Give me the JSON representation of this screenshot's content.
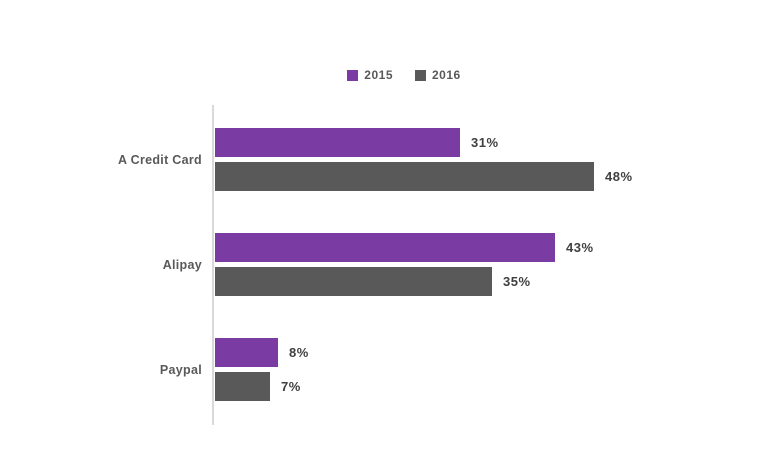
{
  "chart_data": {
    "type": "bar",
    "orientation": "horizontal",
    "categories": [
      "A Credit Card",
      "Alipay",
      "Paypal"
    ],
    "series": [
      {
        "name": "2015",
        "color": "#7A3BA3",
        "values": [
          31,
          43,
          8
        ]
      },
      {
        "name": "2016",
        "color": "#595959",
        "values": [
          48,
          35,
          7
        ]
      }
    ],
    "value_suffix": "%",
    "xlim": [
      0,
      65
    ],
    "grid": false,
    "legend_position": "top-center",
    "legend_entries": [
      "2015",
      "2016"
    ]
  },
  "colors": {
    "background": "#FFFFFF",
    "axis_line": "#D9D9D9",
    "data_label": "#404040",
    "category_label": "#595959"
  }
}
